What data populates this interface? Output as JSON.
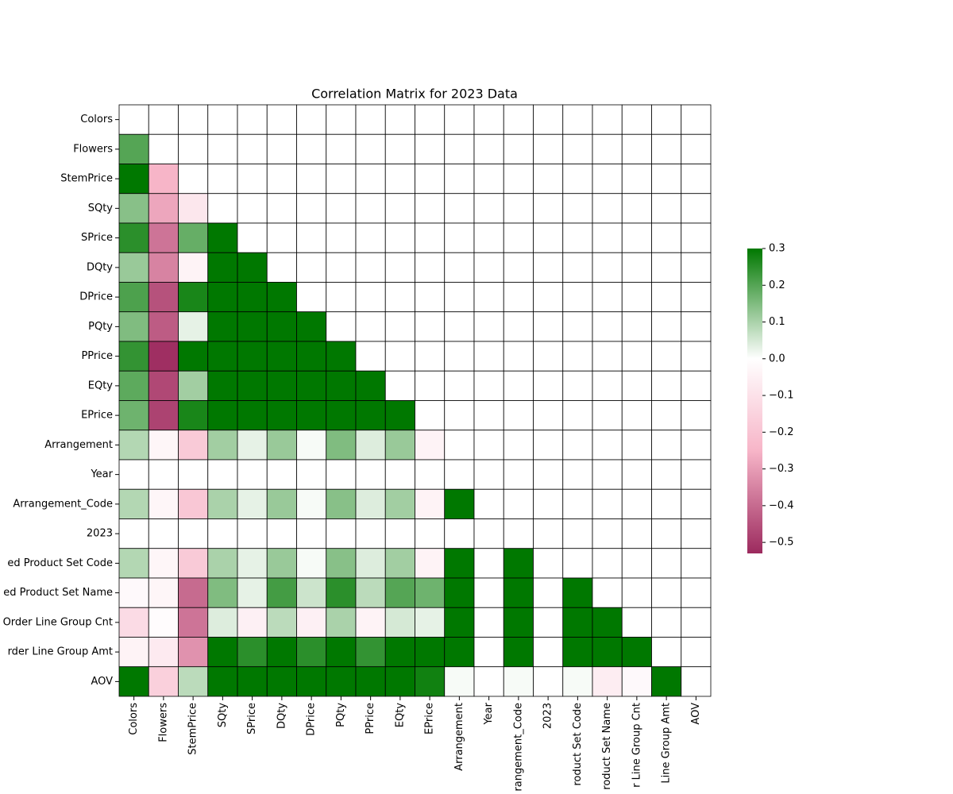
{
  "chart_data": {
    "type": "heatmap",
    "title": "Correlation Matrix for 2023 Data",
    "x_categories": [
      "Colors",
      "Flowers",
      "StemPrice",
      "SQty",
      "SPrice",
      "DQty",
      "DPrice",
      "PQty",
      "PPrice",
      "EQty",
      "EPrice",
      "Arrangement",
      "Year",
      "rangement_Code",
      "2023",
      "roduct Set Code",
      "roduct Set Name",
      "r Line Group Cnt",
      "Line Group Amt",
      "AOV"
    ],
    "y_categories": [
      "Colors",
      "Flowers",
      "StemPrice",
      "SQty",
      "SPrice",
      "DQty",
      "DPrice",
      "PQty",
      "PPrice",
      "EQty",
      "EPrice",
      "Arrangement",
      "Year",
      "Arrangement_Code",
      "2023",
      "ed Product Set Code",
      "ed Product Set Name",
      "Order Line Group Cnt",
      "rder Line Group Amt",
      "AOV"
    ],
    "values": [
      [
        null,
        null,
        null,
        null,
        null,
        null,
        null,
        null,
        null,
        null,
        null,
        null,
        null,
        null,
        null,
        null,
        null,
        null,
        null,
        null
      ],
      [
        0.2,
        null,
        null,
        null,
        null,
        null,
        null,
        null,
        null,
        null,
        null,
        null,
        null,
        null,
        null,
        null,
        null,
        null,
        null,
        null
      ],
      [
        0.3,
        -0.25,
        null,
        null,
        null,
        null,
        null,
        null,
        null,
        null,
        null,
        null,
        null,
        null,
        null,
        null,
        null,
        null,
        null,
        null
      ],
      [
        0.14,
        -0.28,
        -0.08,
        null,
        null,
        null,
        null,
        null,
        null,
        null,
        null,
        null,
        null,
        null,
        null,
        null,
        null,
        null,
        null,
        null
      ],
      [
        0.25,
        -0.38,
        0.18,
        0.3,
        null,
        null,
        null,
        null,
        null,
        null,
        null,
        null,
        null,
        null,
        null,
        null,
        null,
        null,
        null,
        null
      ],
      [
        0.12,
        -0.35,
        -0.04,
        0.3,
        0.3,
        null,
        null,
        null,
        null,
        null,
        null,
        null,
        null,
        null,
        null,
        null,
        null,
        null,
        null,
        null
      ],
      [
        0.21,
        -0.45,
        0.27,
        0.3,
        0.3,
        0.3,
        null,
        null,
        null,
        null,
        null,
        null,
        null,
        null,
        null,
        null,
        null,
        null,
        null,
        null
      ],
      [
        0.15,
        -0.43,
        0.03,
        0.3,
        0.3,
        0.3,
        0.3,
        null,
        null,
        null,
        null,
        null,
        null,
        null,
        null,
        null,
        null,
        null,
        null,
        null
      ],
      [
        0.24,
        -0.52,
        0.3,
        0.3,
        0.3,
        0.3,
        0.3,
        0.3,
        null,
        null,
        null,
        null,
        null,
        null,
        null,
        null,
        null,
        null,
        null,
        null
      ],
      [
        0.19,
        -0.47,
        0.11,
        0.3,
        0.3,
        0.3,
        0.3,
        0.3,
        0.3,
        null,
        null,
        null,
        null,
        null,
        null,
        null,
        null,
        null,
        null,
        null
      ],
      [
        0.17,
        -0.48,
        0.27,
        0.3,
        0.3,
        0.3,
        0.3,
        0.3,
        0.3,
        0.3,
        null,
        null,
        null,
        null,
        null,
        null,
        null,
        null,
        null,
        null
      ],
      [
        0.09,
        -0.03,
        -0.18,
        0.11,
        0.03,
        0.12,
        0.01,
        0.15,
        0.04,
        0.12,
        -0.04,
        null,
        null,
        null,
        null,
        null,
        null,
        null,
        null,
        null
      ],
      [
        null,
        null,
        null,
        null,
        null,
        null,
        null,
        null,
        null,
        null,
        null,
        null,
        null,
        null,
        null,
        null,
        null,
        null,
        null,
        null
      ],
      [
        0.09,
        -0.03,
        -0.19,
        0.1,
        0.03,
        0.12,
        0.01,
        0.14,
        0.04,
        0.11,
        -0.04,
        0.3,
        null,
        null,
        null,
        null,
        null,
        null,
        null,
        null
      ],
      [
        null,
        null,
        null,
        null,
        null,
        null,
        null,
        null,
        null,
        null,
        null,
        null,
        null,
        null,
        null,
        null,
        null,
        null,
        null,
        null
      ],
      [
        0.09,
        -0.03,
        -0.18,
        0.1,
        0.03,
        0.12,
        0.01,
        0.14,
        0.04,
        0.11,
        -0.04,
        0.3,
        null,
        0.3,
        null,
        null,
        null,
        null,
        null,
        null
      ],
      [
        -0.02,
        -0.03,
        -0.4,
        0.15,
        0.03,
        0.22,
        0.06,
        0.25,
        0.08,
        0.2,
        0.17,
        0.3,
        null,
        0.3,
        null,
        0.3,
        null,
        null,
        null,
        null
      ],
      [
        -0.12,
        -0.01,
        -0.38,
        0.04,
        -0.05,
        0.08,
        -0.05,
        0.1,
        -0.04,
        0.05,
        0.03,
        0.3,
        null,
        0.3,
        null,
        0.3,
        0.3,
        null,
        null,
        null
      ],
      [
        -0.04,
        -0.07,
        -0.32,
        0.3,
        0.25,
        0.3,
        0.25,
        0.3,
        0.24,
        0.3,
        0.3,
        0.3,
        null,
        0.3,
        null,
        0.3,
        0.3,
        0.3,
        null,
        null
      ],
      [
        0.3,
        -0.16,
        0.08,
        0.3,
        0.3,
        0.3,
        0.3,
        0.3,
        0.3,
        0.3,
        0.28,
        0.01,
        null,
        0.01,
        null,
        0.01,
        -0.06,
        -0.02,
        0.3,
        null
      ]
    ],
    "zlim": [
      -0.53,
      0.3
    ],
    "colorscale": [
      [
        -0.53,
        "#9c2a5e"
      ],
      [
        -0.25,
        "#f7b5c8"
      ],
      [
        0,
        "#ffffff"
      ],
      [
        0.3,
        "#007800"
      ]
    ],
    "cbar_ticks": [
      {
        "value": -0.5,
        "label": "−0.5"
      },
      {
        "value": -0.4,
        "label": "−0.4"
      },
      {
        "value": -0.3,
        "label": "−0.3"
      },
      {
        "value": -0.2,
        "label": "−0.2"
      },
      {
        "value": -0.1,
        "label": "−0.1"
      },
      {
        "value": 0,
        "label": "0.0"
      },
      0.1,
      0.2,
      0.3
    ]
  }
}
